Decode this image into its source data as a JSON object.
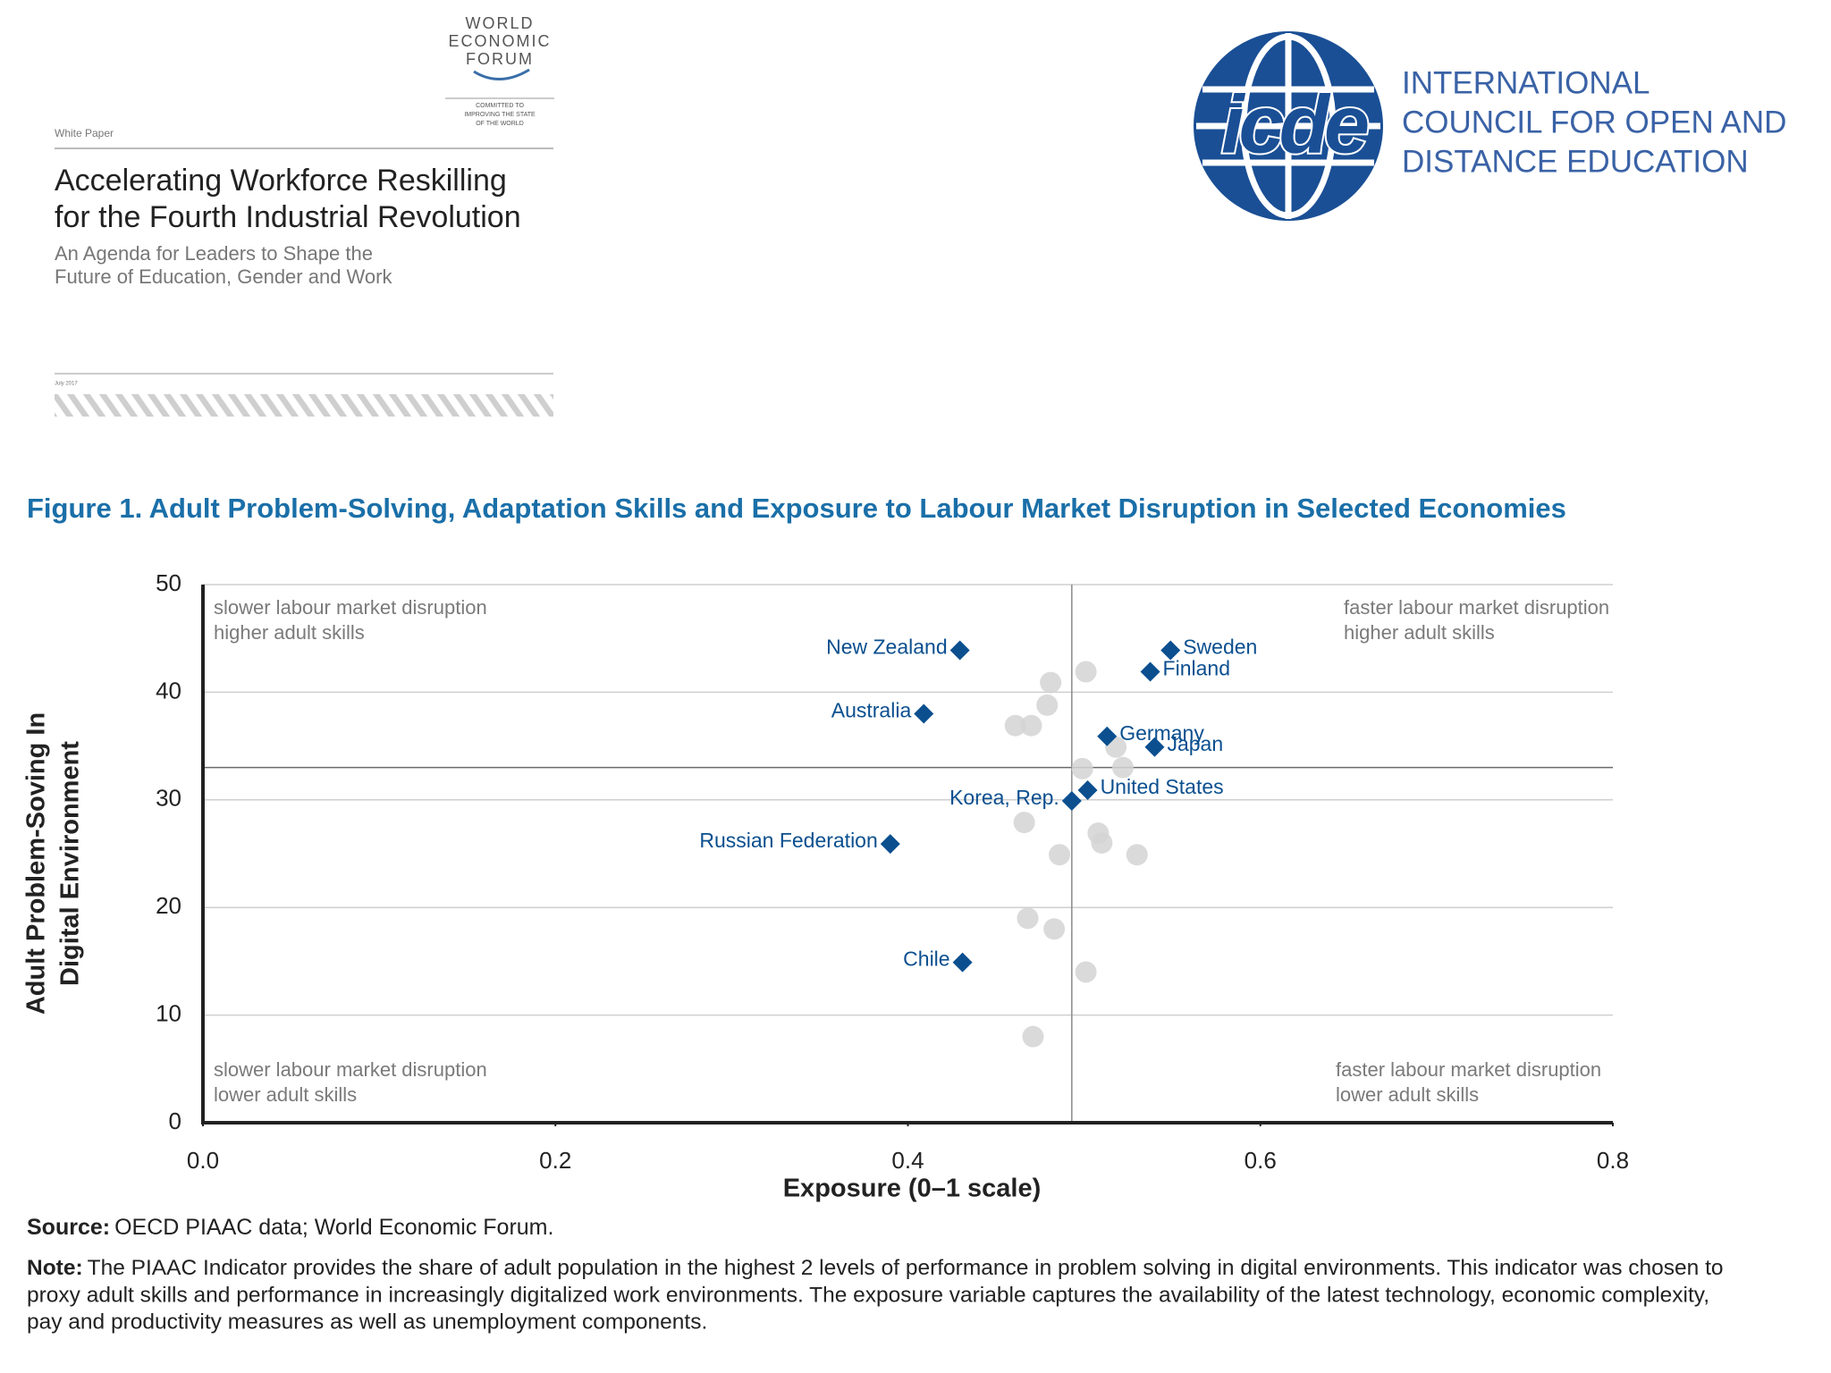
{
  "wef_cover": {
    "logo": [
      "WORLD",
      "ECONOMIC",
      "FORUM"
    ],
    "motto": [
      "COMMITTED TO",
      "IMPROVING THE STATE",
      "OF THE WORLD"
    ],
    "label": "White Paper",
    "title": [
      "Accelerating Workforce Reskilling",
      "for the Fourth Industrial Revolution"
    ],
    "subtitle": [
      "An Agenda for Leaders to Shape the",
      "Future of Education, Gender and Work"
    ],
    "date": "July 2017"
  },
  "icde": {
    "logo": "icde",
    "name": [
      "INTERNATIONAL",
      "COUNCIL FOR OPEN AND",
      "DISTANCE EDUCATION"
    ]
  },
  "figure_title": "Figure 1. Adult Problem-Solving, Adaptation Skills and Exposure to Labour Market Disruption in Selected Economies",
  "chart_data": {
    "type": "scatter",
    "x_label": "Exposure (0–1 scale)",
    "y_label": [
      "Adult Problem-Soving In",
      "Digital Environment"
    ],
    "xlim": [
      0,
      0.8
    ],
    "xticks": [
      {
        "value": 0,
        "label": "0.0"
      },
      0.2,
      0.4,
      0.6,
      0.8
    ],
    "ylim": [
      0,
      50
    ],
    "yticks": [
      0,
      10,
      20,
      30,
      40,
      50
    ],
    "grid": true,
    "reference_x": 0.493,
    "reference_y": 33,
    "annotations": [
      {
        "lines": [
          "slower labour market disruption",
          "higher adult skills"
        ]
      },
      {
        "lines": [
          "faster labour market disruption",
          "higher adult skills"
        ]
      },
      {
        "lines": [
          "slower labour market disruption",
          "lower adult skills"
        ]
      },
      {
        "lines": [
          "faster labour market disruption",
          "lower adult skills"
        ]
      }
    ],
    "series": [
      {
        "color": "#d4d4d4",
        "marker": "circle",
        "x": [
          0.481,
          0.501,
          0.479,
          0.461,
          0.47,
          0.518,
          0.499,
          0.522,
          0.466,
          0.508,
          0.51,
          0.486,
          0.53,
          0.468,
          0.483,
          0.501,
          0.471
        ],
        "values": [
          40.9,
          41.9,
          38.8,
          36.9,
          36.9,
          34.9,
          32.9,
          33.0,
          27.9,
          26.9,
          26.0,
          24.9,
          24.9,
          19.0,
          18.0,
          14.0,
          8.0
        ]
      },
      {
        "color": "#0b4f8f",
        "marker": "diamond",
        "labels": [
          "New Zealand",
          "Sweden",
          "Finland",
          "Australia",
          "Germany",
          "Japan",
          "Korea, Rep.",
          "United States",
          "Russian Federation",
          "Chile"
        ],
        "x": [
          0.4295,
          0.549,
          0.5375,
          0.409,
          0.513,
          0.54,
          0.493,
          0.502,
          0.39,
          0.431
        ],
        "values": [
          43.9,
          43.9,
          41.9,
          38.0,
          35.9,
          34.9,
          29.9,
          30.9,
          25.9,
          14.9
        ]
      }
    ]
  },
  "source": {
    "label": "Source:",
    "text": "OECD PIAAC data; World Economic Forum."
  },
  "note": {
    "label": "Note:",
    "lines": [
      "The PIAAC Indicator provides the share of adult population in the highest 2 levels of performance in problem solving in digital environments. This indicator was chosen to",
      "proxy adult skills and performance in increasingly digitalized work environments. The exposure variable captures the availability of the latest technology, economic complexity,",
      "pay and productivity measures as well as unemployment components."
    ]
  }
}
